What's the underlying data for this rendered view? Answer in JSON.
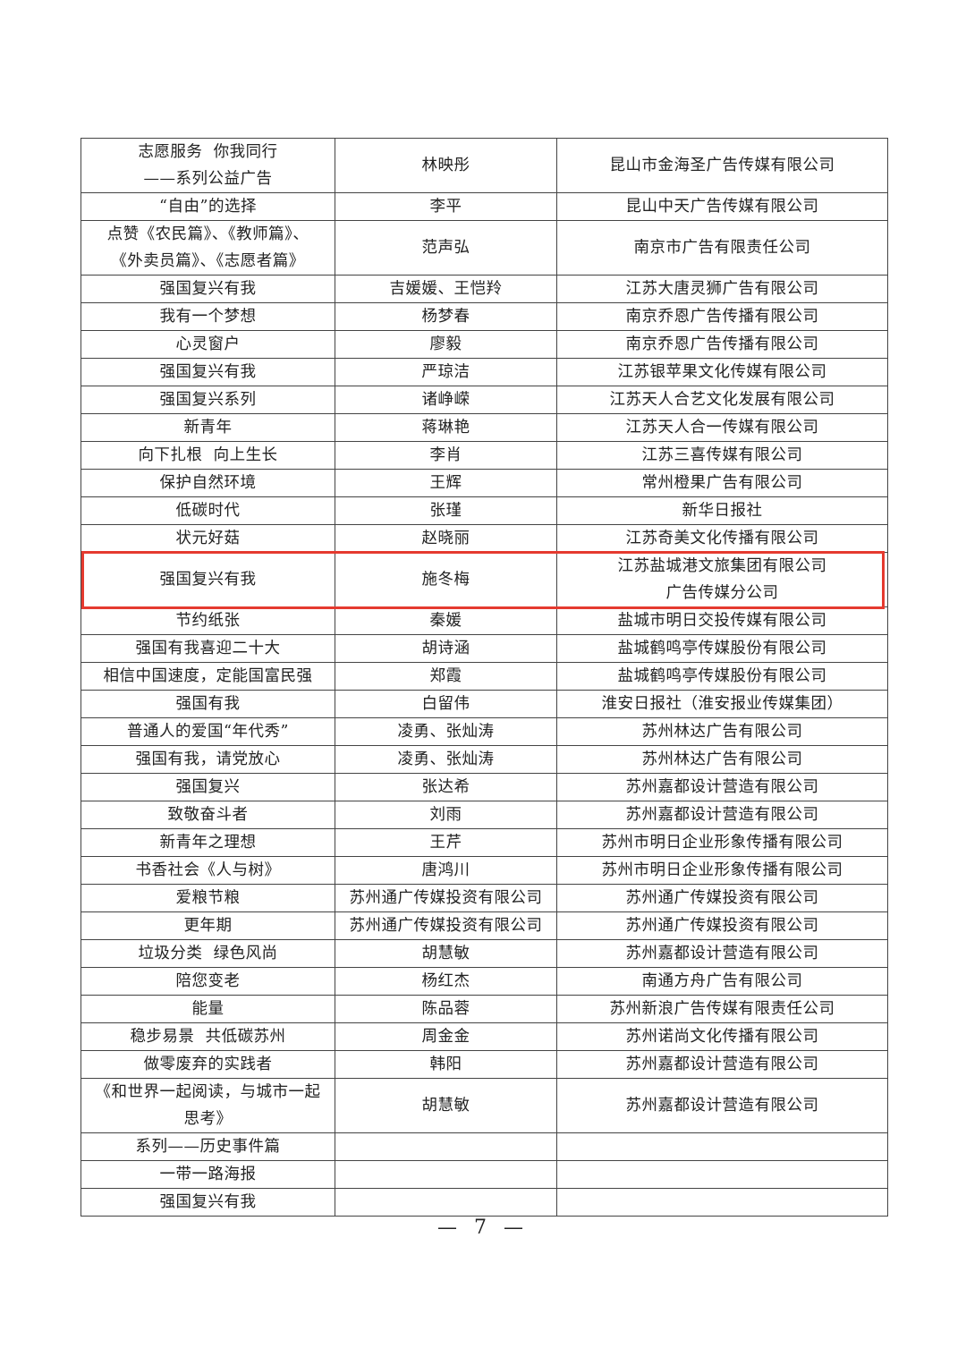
{
  "table": {
    "rows": [
      {
        "cells": [
          [
            "志愿服务  你我同行",
            "——系列公益广告"
          ],
          [
            "林映彤"
          ],
          [
            "昆山市金海圣广告传媒有限公司"
          ]
        ]
      },
      {
        "cells": [
          [
            "“自由”的选择"
          ],
          [
            "李平"
          ],
          [
            "昆山中天广告传媒有限公司"
          ]
        ]
      },
      {
        "cells": [
          [
            "点赞《农民篇》、《教师篇》、",
            "《外卖员篇》、《志愿者篇》"
          ],
          [
            "范声弘"
          ],
          [
            "南京市广告有限责任公司"
          ]
        ]
      },
      {
        "cells": [
          [
            "强国复兴有我"
          ],
          [
            "吉媛媛、王恺羚"
          ],
          [
            "江苏大唐灵狮广告有限公司"
          ]
        ]
      },
      {
        "cells": [
          [
            "我有一个梦想"
          ],
          [
            "杨梦春"
          ],
          [
            "南京乔恩广告传播有限公司"
          ]
        ]
      },
      {
        "cells": [
          [
            "心灵窗户"
          ],
          [
            "廖毅"
          ],
          [
            "南京乔恩广告传播有限公司"
          ]
        ]
      },
      {
        "cells": [
          [
            "强国复兴有我"
          ],
          [
            "严琼洁"
          ],
          [
            "江苏银苹果文化传媒有限公司"
          ]
        ]
      },
      {
        "cells": [
          [
            "强国复兴系列"
          ],
          [
            "诸峥嵘"
          ],
          [
            "江苏天人合艺文化发展有限公司"
          ]
        ]
      },
      {
        "cells": [
          [
            "新青年"
          ],
          [
            "蒋琳艳"
          ],
          [
            "江苏天人合一传媒有限公司"
          ]
        ]
      },
      {
        "cells": [
          [
            "向下扎根  向上生长"
          ],
          [
            "李肖"
          ],
          [
            "江苏三喜传媒有限公司"
          ]
        ]
      },
      {
        "cells": [
          [
            "保护自然环境"
          ],
          [
            "王辉"
          ],
          [
            "常州橙果广告有限公司"
          ]
        ]
      },
      {
        "cells": [
          [
            "低碳时代"
          ],
          [
            "张瑾"
          ],
          [
            "新华日报社"
          ]
        ]
      },
      {
        "cells": [
          [
            "状元好菇"
          ],
          [
            "赵晓丽"
          ],
          [
            "江苏奇美文化传播有限公司"
          ]
        ]
      },
      {
        "highlighted": true,
        "cells": [
          [
            "强国复兴有我"
          ],
          [
            "施冬梅"
          ],
          [
            "江苏盐城港文旅集团有限公司",
            "广告传媒分公司"
          ]
        ]
      },
      {
        "cells": [
          [
            "节约纸张"
          ],
          [
            "秦媛"
          ],
          [
            "盐城市明日交投传媒有限公司"
          ]
        ]
      },
      {
        "cells": [
          [
            "强国有我喜迎二十大"
          ],
          [
            "胡诗涵"
          ],
          [
            "盐城鹤鸣亭传媒股份有限公司"
          ]
        ]
      },
      {
        "cells": [
          [
            "相信中国速度，定能国富民强"
          ],
          [
            "郑霞"
          ],
          [
            "盐城鹤鸣亭传媒股份有限公司"
          ]
        ]
      },
      {
        "cells": [
          [
            "强国有我"
          ],
          [
            "白留伟"
          ],
          [
            "淮安日报社（淮安报业传媒集团）"
          ]
        ]
      },
      {
        "cells": [
          [
            "普通人的爱国“年代秀”"
          ],
          [
            "凌勇、张灿涛"
          ],
          [
            "苏州林达广告有限公司"
          ]
        ]
      },
      {
        "cells": [
          [
            "强国有我，请党放心"
          ],
          [
            "凌勇、张灿涛"
          ],
          [
            "苏州林达广告有限公司"
          ]
        ]
      },
      {
        "cells": [
          [
            "强国复兴"
          ],
          [
            "张达希"
          ],
          [
            "苏州嘉都设计营造有限公司"
          ]
        ]
      },
      {
        "cells": [
          [
            "致敬奋斗者"
          ],
          [
            "刘雨"
          ],
          [
            "苏州嘉都设计营造有限公司"
          ]
        ]
      },
      {
        "cells": [
          [
            "新青年之理想"
          ],
          [
            "王芹"
          ],
          [
            "苏州市明日企业形象传播有限公司"
          ]
        ]
      },
      {
        "cells": [
          [
            "书香社会《人与树》"
          ],
          [
            "唐鸿川"
          ],
          [
            "苏州市明日企业形象传播有限公司"
          ]
        ]
      },
      {
        "cells": [
          [
            "爱粮节粮"
          ],
          [
            "苏州通广传媒投资有限公司"
          ],
          [
            "苏州通广传媒投资有限公司"
          ]
        ]
      },
      {
        "cells": [
          [
            "更年期"
          ],
          [
            "苏州通广传媒投资有限公司"
          ],
          [
            "苏州通广传媒投资有限公司"
          ]
        ]
      },
      {
        "cells": [
          [
            "垃圾分类  绿色风尚"
          ],
          [
            "胡慧敏"
          ],
          [
            "苏州嘉都设计营造有限公司"
          ]
        ]
      },
      {
        "cells": [
          [
            "陪您变老"
          ],
          [
            "杨红杰"
          ],
          [
            "南通方舟广告有限公司"
          ]
        ]
      },
      {
        "cells": [
          [
            "能量"
          ],
          [
            "陈品蓉"
          ],
          [
            "苏州新浪广告传媒有限责任公司"
          ]
        ]
      },
      {
        "cells": [
          [
            "稳步易景  共低碳苏州"
          ],
          [
            "周金金"
          ],
          [
            "苏州诺尚文化传播有限公司"
          ]
        ]
      },
      {
        "cells": [
          [
            "做零废弃的实践者"
          ],
          [
            "韩阳"
          ],
          [
            "苏州嘉都设计营造有限公司"
          ]
        ]
      },
      {
        "cells": [
          [
            "《和世界一起阅读，与城市一起",
            "思考》"
          ],
          [
            "胡慧敏"
          ],
          [
            "苏州嘉都设计营造有限公司"
          ]
        ]
      },
      {
        "cells": [
          [
            "系列——历史事件篇"
          ],
          [],
          []
        ]
      },
      {
        "cells": [
          [
            "一带一路海报"
          ],
          [],
          []
        ]
      },
      {
        "cells": [
          [
            "强国复兴有我"
          ],
          [],
          []
        ]
      }
    ]
  },
  "highlight_color": "#e53a2f",
  "page_number": "— 7 —"
}
